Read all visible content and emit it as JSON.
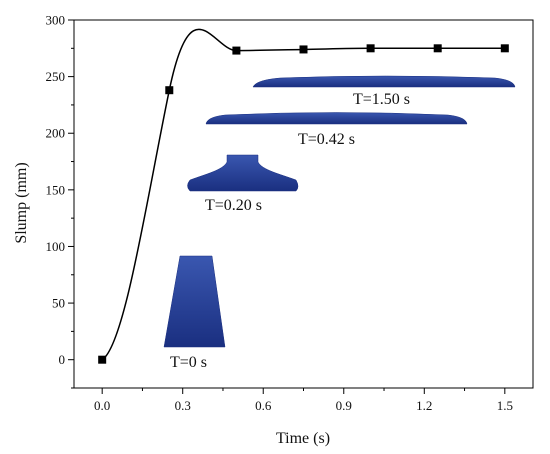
{
  "chart_data": {
    "type": "line",
    "title": "",
    "xlabel": "Time (s)",
    "ylabel": "Slump (mm)",
    "xlim": [
      -0.105,
      1.605
    ],
    "ylim": [
      -25,
      300
    ],
    "x_ticks": [
      0.0,
      0.3,
      0.6,
      0.9,
      1.2,
      1.5
    ],
    "x_tick_labels": [
      "0.0",
      "0.3",
      "0.6",
      "0.9",
      "1.2",
      "1.5"
    ],
    "y_ticks": [
      0,
      50,
      100,
      150,
      200,
      250,
      300
    ],
    "y_tick_labels": [
      "0",
      "50",
      "100",
      "150",
      "200",
      "250",
      "300"
    ],
    "grid": false,
    "legend": "none",
    "series": [
      {
        "marker": "square",
        "color": "#000000",
        "points": [
          {
            "x": 0.0,
            "y": 0
          },
          {
            "x": 0.25,
            "y": 238
          },
          {
            "x": 0.5,
            "y": 273
          },
          {
            "x": 0.75,
            "y": 274
          },
          {
            "x": 1.0,
            "y": 275
          },
          {
            "x": 1.25,
            "y": 275
          },
          {
            "x": 1.5,
            "y": 275
          }
        ]
      }
    ],
    "annotations": [
      {
        "id": "t0",
        "label": "T=0 s",
        "shape": "cone-frustum",
        "color": "#1f3a93"
      },
      {
        "id": "t020",
        "label": "T=0.20 s",
        "shape": "slumped-cone",
        "color": "#1f3a93"
      },
      {
        "id": "t042",
        "label": "T=0.42 s",
        "shape": "flat-spread",
        "color": "#1f3a93"
      },
      {
        "id": "t150",
        "label": "T=1.50 s",
        "shape": "flat-spread",
        "color": "#1f3a93"
      }
    ]
  }
}
